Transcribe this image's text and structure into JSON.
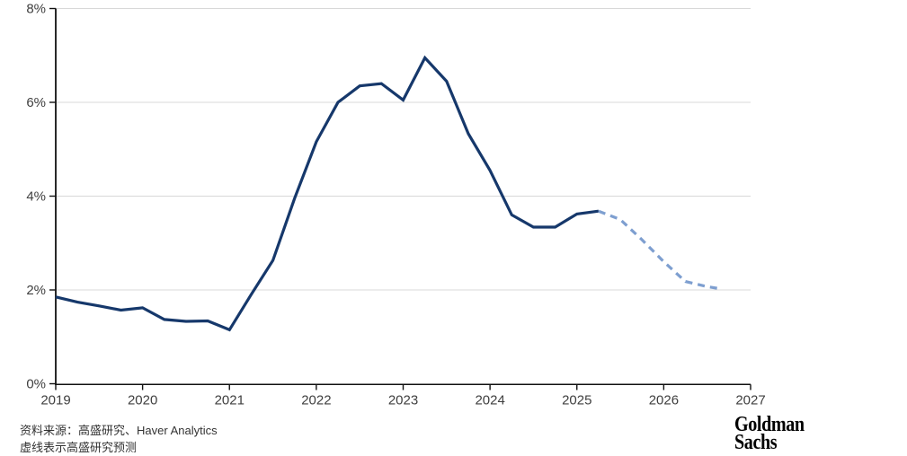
{
  "chart_data": {
    "type": "line",
    "title": "",
    "xlabel": "",
    "ylabel": "",
    "legend": "none",
    "grid": {
      "horizontal": true,
      "vertical": false
    },
    "x_axis": {
      "range": [
        2019,
        2027
      ],
      "ticks": [
        {
          "value": 2019,
          "label": "2019"
        },
        {
          "value": 2020,
          "label": "2020"
        },
        {
          "value": 2021,
          "label": "2021"
        },
        {
          "value": 2022,
          "label": "2022"
        },
        {
          "value": 2023,
          "label": "2023"
        },
        {
          "value": 2024,
          "label": "2024"
        },
        {
          "value": 2025,
          "label": "2025"
        },
        {
          "value": 2026,
          "label": "2026"
        },
        {
          "value": 2027,
          "label": "2027"
        }
      ]
    },
    "y_axis": {
      "range": [
        0,
        8
      ],
      "ticks": [
        {
          "value": 0,
          "label": "0%"
        },
        {
          "value": 2,
          "label": "2%"
        },
        {
          "value": 4,
          "label": "4%"
        },
        {
          "value": 6,
          "label": "6%"
        },
        {
          "value": 8,
          "label": "8%"
        }
      ]
    },
    "series": [
      {
        "id": "historical",
        "style": "solid",
        "color": "#16386b",
        "points": [
          [
            2019.0,
            1.85
          ],
          [
            2019.25,
            1.74
          ],
          [
            2019.5,
            1.66
          ],
          [
            2019.75,
            1.57
          ],
          [
            2020.0,
            1.62
          ],
          [
            2020.25,
            1.37
          ],
          [
            2020.5,
            1.33
          ],
          [
            2020.75,
            1.34
          ],
          [
            2021.0,
            1.15
          ],
          [
            2021.25,
            1.9
          ],
          [
            2021.5,
            2.63
          ],
          [
            2021.75,
            3.95
          ],
          [
            2022.0,
            5.16
          ],
          [
            2022.25,
            6.0
          ],
          [
            2022.5,
            6.35
          ],
          [
            2022.75,
            6.4
          ],
          [
            2023.0,
            6.05
          ],
          [
            2023.25,
            6.95
          ],
          [
            2023.5,
            6.45
          ],
          [
            2023.75,
            5.33
          ],
          [
            2024.0,
            4.55
          ],
          [
            2024.25,
            3.6
          ],
          [
            2024.5,
            3.34
          ],
          [
            2024.75,
            3.34
          ],
          [
            2025.0,
            3.62
          ],
          [
            2025.25,
            3.68
          ]
        ]
      },
      {
        "id": "forecast",
        "style": "dashed",
        "color": "#7e9fd0",
        "points": [
          [
            2025.25,
            3.68
          ],
          [
            2025.5,
            3.5
          ],
          [
            2025.75,
            3.07
          ],
          [
            2026.0,
            2.6
          ],
          [
            2026.25,
            2.18
          ],
          [
            2026.5,
            2.07
          ],
          [
            2026.67,
            2.02
          ]
        ]
      }
    ],
    "colors": {
      "axis": "#111111",
      "gridline": "#d8d8d8",
      "tick_label": "#3f3f3f"
    }
  },
  "footer": {
    "source_text": "资料来源：高盛研究、Haver Analytics",
    "note_text": "虚线表示高盛研究预测",
    "brand": {
      "line1": "Goldman",
      "line2": "Sachs"
    }
  }
}
